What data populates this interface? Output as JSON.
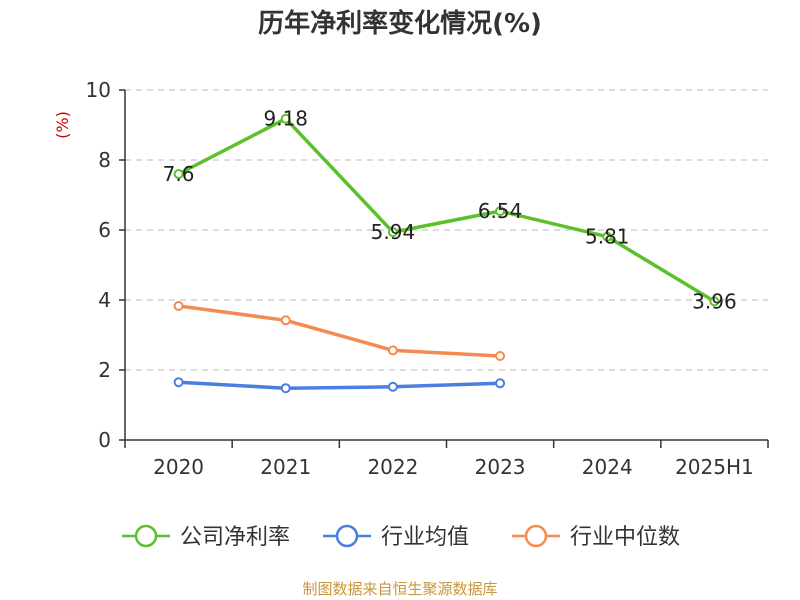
{
  "chart_data": {
    "type": "line",
    "title": "历年净利率变化情况(%)",
    "ylabel": "(%)",
    "categories": [
      "2020",
      "2021",
      "2022",
      "2023",
      "2024",
      "2025H1"
    ],
    "ylim": [
      0,
      10
    ],
    "yticks": [
      0,
      2,
      4,
      6,
      8,
      10
    ],
    "grid": true,
    "legend_position": "bottom",
    "series": [
      {
        "name": "公司净利率",
        "color": "#5cc02b",
        "values": [
          7.6,
          9.18,
          5.94,
          6.54,
          5.81,
          3.96
        ],
        "labels": [
          "7.6",
          "9.18",
          "5.94",
          "6.54",
          "5.81",
          "3.96"
        ]
      },
      {
        "name": "行业均值",
        "color": "#4a7fe0",
        "values": [
          1.65,
          1.48,
          1.52,
          1.62,
          null,
          null
        ]
      },
      {
        "name": "行业中位数",
        "color": "#f58a50",
        "values": [
          3.83,
          3.42,
          2.56,
          2.4,
          null,
          null
        ]
      }
    ]
  },
  "source": "制图数据来自恒生聚源数据库"
}
